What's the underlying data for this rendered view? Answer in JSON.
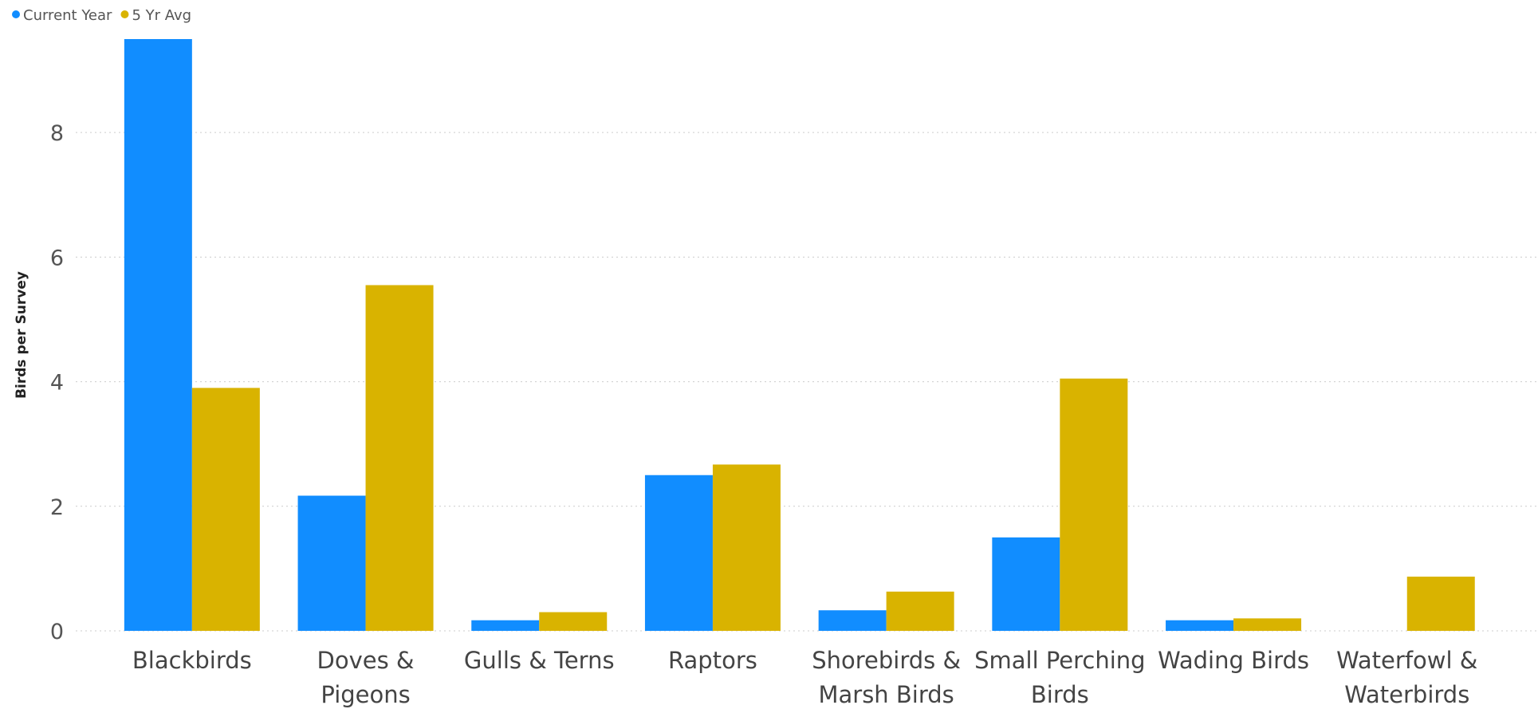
{
  "chart_data": {
    "type": "bar",
    "categories": [
      [
        "Blackbirds"
      ],
      [
        "Doves &",
        "Pigeons"
      ],
      [
        "Gulls & Terns"
      ],
      [
        "Raptors"
      ],
      [
        "Shorebirds &",
        "Marsh Birds"
      ],
      [
        "Small Perching",
        "Birds"
      ],
      [
        "Wading Birds"
      ],
      [
        "Waterfowl &",
        "Waterbirds"
      ]
    ],
    "series": [
      {
        "name": "Current Year",
        "color": "#118DFF",
        "values": [
          9.5,
          2.17,
          0.17,
          2.5,
          0.33,
          1.5,
          0.17,
          0
        ]
      },
      {
        "name": "5 Yr Avg",
        "color": "#D9B300",
        "values": [
          3.9,
          5.55,
          0.3,
          2.67,
          0.63,
          4.05,
          0.2,
          0.87
        ]
      }
    ],
    "ylabel": "Birds per Survey",
    "xlabel": "",
    "ylim": [
      0,
      9.5
    ],
    "yticks": [
      0,
      2,
      4,
      6,
      8
    ],
    "grid": true,
    "legend_position": "top-left"
  }
}
